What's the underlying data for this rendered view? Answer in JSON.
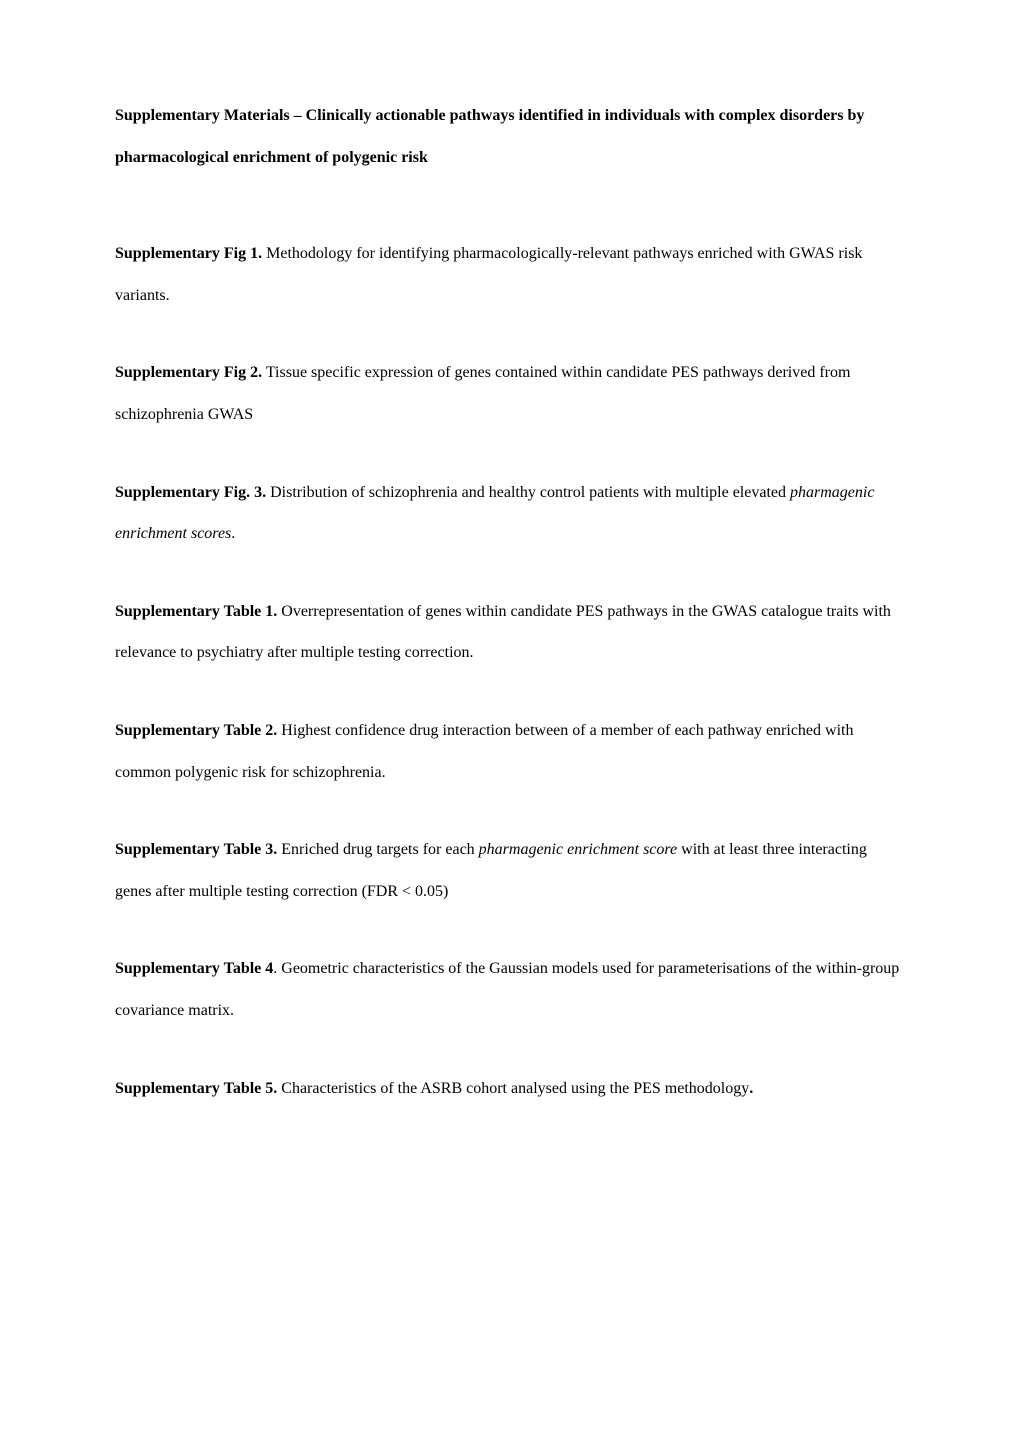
{
  "title": {
    "prefix": "Supplementary Materials – ",
    "text": "Clinically actionable pathways identified in individuals with complex disorders by pharmacological enrichment of polygenic risk"
  },
  "entries": [
    {
      "label": "Supplementary Fig 1.",
      "text_before_italic": " Methodology for identifying pharmacologically-relevant pathways enriched with GWAS risk variants.",
      "italic": "",
      "text_after_italic": ""
    },
    {
      "label": "Supplementary Fig 2.",
      "text_before_italic": " Tissue specific expression of genes contained within candidate PES pathways derived from schizophrenia GWAS",
      "italic": "",
      "text_after_italic": ""
    },
    {
      "label": "Supplementary Fig. 3.",
      "text_before_italic": " Distribution of schizophrenia and healthy control patients with multiple elevated ",
      "italic": "pharmagenic enrichment scores",
      "text_after_italic": "."
    },
    {
      "label": "Supplementary Table 1.",
      "text_before_italic": " Overrepresentation of genes within candidate PES pathways in the GWAS catalogue traits with relevance to psychiatry after multiple testing correction.",
      "italic": "",
      "text_after_italic": ""
    },
    {
      "label": "Supplementary Table 2.",
      "text_before_italic": " Highest confidence drug interaction between of a member of each pathway enriched with common polygenic risk for schizophrenia.",
      "italic": "",
      "text_after_italic": ""
    },
    {
      "label": "Supplementary Table 3.",
      "text_before_italic": " Enriched drug targets for each ",
      "italic": "pharmagenic enrichment score",
      "text_after_italic": " with at least three interacting genes after multiple testing correction (FDR < 0.05)"
    },
    {
      "label": "Supplementary Table 4",
      "text_before_italic": ". Geometric characteristics of the Gaussian models used for parameterisations of the within-group covariance matrix.",
      "italic": "",
      "text_after_italic": ""
    },
    {
      "label": "Supplementary Table 5.",
      "text_before_italic": " Characteristics of the ASRB cohort analysed using the PES methodology",
      "italic": "",
      "text_after_italic": ".",
      "trailing_bold": true
    }
  ],
  "style": {
    "font_family": "Times New Roman",
    "background_color": "#ffffff",
    "text_color": "#000000",
    "font_size_pt": 12,
    "line_height": 2.6
  }
}
